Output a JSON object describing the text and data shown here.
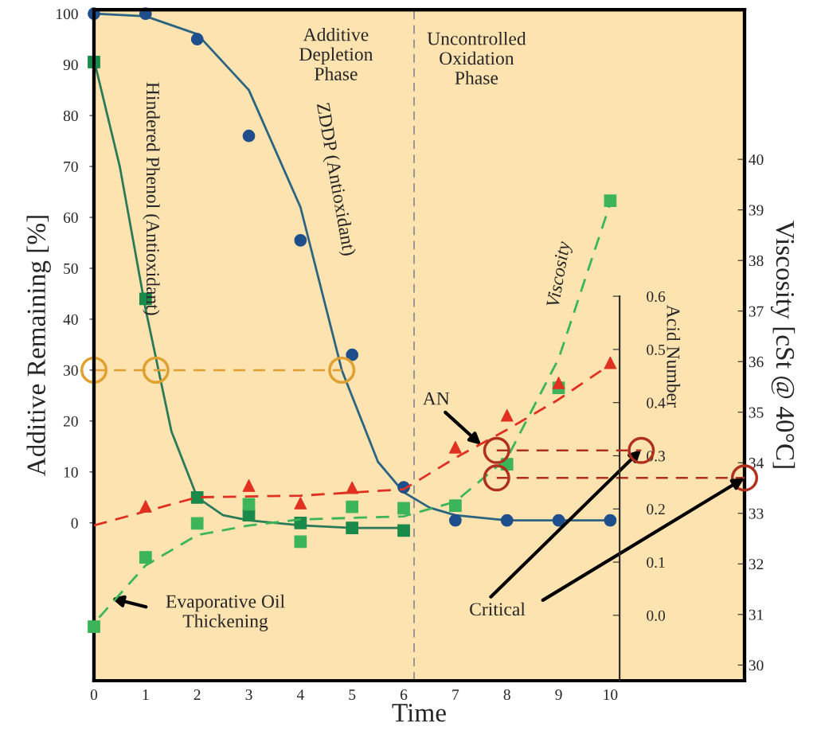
{
  "chart_data": {
    "type": "scatter",
    "xlabel": "Time",
    "ylabel": "Additive Remaining [%]",
    "y2label": "Viscosity [cSt @ 40°C]",
    "y3label": "Acid Number",
    "xlim": [
      0,
      12.6
    ],
    "xticks": [
      0,
      1,
      2,
      3,
      4,
      5,
      6,
      7,
      8,
      9,
      10
    ],
    "ylim": [
      -31,
      100.8
    ],
    "yticks": [
      0,
      10,
      20,
      30,
      40,
      50,
      60,
      70,
      80,
      90,
      100
    ],
    "y2lim": [
      29.69,
      42.96
    ],
    "y2ticks": [
      30,
      31,
      32,
      33,
      34,
      35,
      36,
      37,
      38,
      39,
      40
    ],
    "y3lim": [
      -0.123,
      1.139
    ],
    "y3ticks": [
      {
        "value": 0.0,
        "label": "0.0"
      },
      {
        "value": 0.1,
        "label": "0.1"
      },
      {
        "value": 0.2,
        "label": "0.2"
      },
      {
        "value": 0.3,
        "label": "0.3"
      },
      {
        "value": 0.4,
        "label": "0.4"
      },
      {
        "value": 0.5,
        "label": "0.5"
      },
      {
        "value": 0.6,
        "label": "0.6"
      }
    ],
    "grid": false,
    "legend": false,
    "series": [
      {
        "marker": "circle",
        "color": "#1f4e8c",
        "x": [
          0,
          1,
          2,
          3,
          4,
          5,
          6,
          7,
          8,
          9,
          10
        ],
        "values": [
          100,
          100,
          95,
          76,
          55.5,
          33,
          7,
          0.5,
          0.5,
          0.5,
          0.5
        ]
      },
      {
        "type": "line",
        "line_style": "solid",
        "color": "#2a6480",
        "x": [
          0,
          1,
          2,
          3,
          4,
          4.8,
          5.5,
          6,
          6.5,
          7,
          8,
          10
        ],
        "values": [
          100,
          99.5,
          96,
          85,
          62,
          30,
          12,
          6,
          3,
          1.5,
          0.5,
          0.5
        ]
      },
      {
        "marker": "square",
        "color": "#1a8a4a",
        "x": [
          0,
          1,
          2,
          3,
          4,
          5,
          6
        ],
        "values": [
          90.5,
          44,
          5,
          1.5,
          0,
          -1,
          -1.5
        ]
      },
      {
        "type": "line",
        "line_style": "solid",
        "color": "#2a7a5a",
        "x": [
          0,
          0.5,
          1,
          1.5,
          2,
          2.5,
          3,
          4,
          5,
          6
        ],
        "values": [
          91,
          70,
          42,
          18,
          5,
          1.5,
          0.5,
          -0.5,
          -1,
          -1
        ]
      },
      {
        "axis": "y2",
        "marker": "square",
        "color": "#3cb55a",
        "x": [
          0,
          1,
          2,
          3,
          4,
          5,
          6,
          7,
          8,
          9,
          10
        ],
        "values": [
          30.76,
          32.13,
          32.8,
          33.18,
          32.44,
          33.13,
          33.1,
          33.15,
          33.97,
          35.48,
          39.18
        ]
      },
      {
        "type": "line",
        "axis": "y2",
        "line_style": "dashed",
        "color": "#3cb55a",
        "x": [
          0.1,
          1,
          2,
          3,
          4,
          5,
          6,
          7,
          8,
          9,
          10
        ],
        "values": [
          30.94,
          31.97,
          32.57,
          32.76,
          32.88,
          32.91,
          32.94,
          33.23,
          34.09,
          36.06,
          39.13
        ]
      },
      {
        "axis": "y3",
        "marker": "triangle",
        "color": "#e03020",
        "x": [
          1,
          3,
          4,
          5,
          7,
          8,
          9,
          10
        ],
        "values": [
          0.205,
          0.244,
          0.211,
          0.24,
          0.316,
          0.376,
          0.437,
          0.475
        ]
      },
      {
        "type": "line",
        "axis": "y3",
        "line_style": "dashed",
        "color": "#e03020",
        "x": [
          0,
          2,
          4,
          6,
          7,
          8,
          9,
          10
        ],
        "values": [
          0.169,
          0.222,
          0.225,
          0.237,
          0.296,
          0.349,
          0.406,
          0.472
        ]
      },
      {
        "type": "line",
        "marker": "circle",
        "line_style": "dashed",
        "color": "#e0a030",
        "x": [
          0,
          1.2,
          4.8
        ],
        "values": [
          30,
          30,
          30
        ]
      },
      {
        "type": "line",
        "axis": "y3",
        "marker": "circle",
        "line_style": "dashed",
        "color": "#b03020",
        "x": [
          7.8,
          10.6
        ],
        "values": [
          0.31,
          0.31
        ]
      },
      {
        "type": "line",
        "axis": "y2",
        "marker": "circle",
        "line_style": "dashed",
        "color": "#b03020",
        "x": [
          7.8,
          12.6
        ],
        "values": [
          33.7,
          33.7
        ]
      }
    ],
    "ref_lines": [
      {
        "axis": "x",
        "value": 6.2,
        "color": "#909090",
        "line_style": "dashed"
      }
    ],
    "annotations": [
      "Additive\nDepletion\nPhase",
      "Uncontrolled\nOxidation\nPhase",
      "Hindered Phenol (Antioxidant)",
      "ZDDP (Antioxidant)",
      "Viscosity",
      {
        "text": "AN",
        "x": 7.5,
        "y": 15.3
      },
      {
        "text": "Evaporative Oil\nThickening",
        "x": 0.34,
        "y": -14.8
      },
      {
        "text": "Critical",
        "x": 10.6,
        "y": 14.4
      }
    ]
  }
}
